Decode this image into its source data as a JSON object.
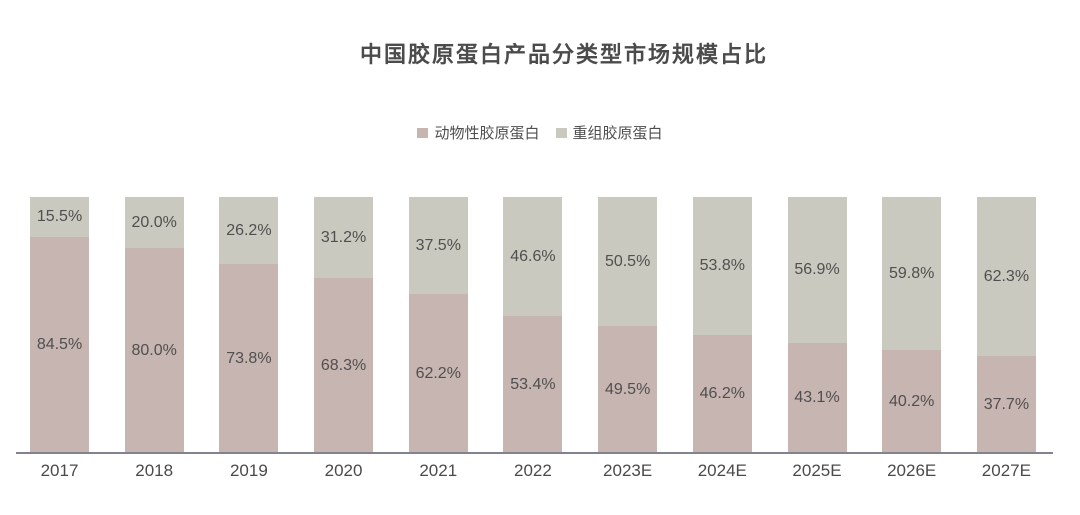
{
  "title": "中国胶原蛋白产品分类型市场规模占比",
  "legend": {
    "items": [
      {
        "label": "动物性胶原蛋白",
        "color": "#c6b5b1"
      },
      {
        "label": "重组胶原蛋白",
        "color": "#cac9bf"
      }
    ]
  },
  "chart_data": {
    "type": "bar",
    "stacked": true,
    "orientation": "vertical",
    "title": "中国胶原蛋白产品分类型市场规模占比",
    "categories": [
      "2017",
      "2018",
      "2019",
      "2020",
      "2021",
      "2022",
      "2023E",
      "2024E",
      "2025E",
      "2026E",
      "2027E"
    ],
    "series": [
      {
        "name": "动物性胶原蛋白",
        "color": "#c6b5b1",
        "position": "bottom",
        "values": [
          84.5,
          80.0,
          73.8,
          68.3,
          62.2,
          53.4,
          49.5,
          46.2,
          43.1,
          40.2,
          37.7
        ]
      },
      {
        "name": "重组胶原蛋白",
        "color": "#cac9bf",
        "position": "top",
        "values": [
          15.5,
          20.0,
          26.2,
          31.2,
          37.5,
          46.6,
          50.5,
          53.8,
          56.9,
          59.8,
          62.3
        ]
      }
    ],
    "value_suffix": "%",
    "value_decimals": 1,
    "ylim": [
      0,
      100
    ],
    "grid": false,
    "axes_ticks_visible": false,
    "legend_position": "top",
    "data_labels": "inside-center"
  },
  "colors": {
    "background": "#ffffff",
    "label_text": "#514f4f",
    "axis_line": "#83838d",
    "title_text": "#4c4b4b"
  }
}
